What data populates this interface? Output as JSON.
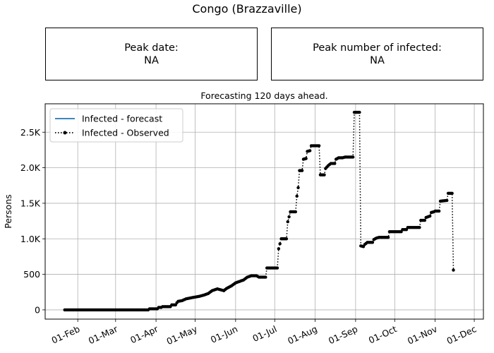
{
  "title": "Congo (Brazzaville)",
  "boxes": {
    "peak_date": {
      "label": "Peak date:",
      "value": "NA"
    },
    "peak_infected": {
      "label": "Peak number of infected:",
      "value": "NA"
    }
  },
  "chart_data": {
    "type": "line",
    "title": "Forecasting 120 days ahead.",
    "ylabel": "Persons",
    "xlabel": "",
    "x_range": [
      "2020-01-07",
      "2020-12-08"
    ],
    "ylim": [
      -130,
      2900
    ],
    "grid": true,
    "legend_position": "top-left",
    "x_ticks": [
      {
        "date": "2020-02-01",
        "label": "01-Feb"
      },
      {
        "date": "2020-03-01",
        "label": "01-Mar"
      },
      {
        "date": "2020-04-01",
        "label": "01-Apr"
      },
      {
        "date": "2020-05-01",
        "label": "01-May"
      },
      {
        "date": "2020-06-01",
        "label": "01-Jun"
      },
      {
        "date": "2020-07-01",
        "label": "01-Jul"
      },
      {
        "date": "2020-08-01",
        "label": "01-Aug"
      },
      {
        "date": "2020-09-01",
        "label": "01-Sep"
      },
      {
        "date": "2020-10-01",
        "label": "01-Oct"
      },
      {
        "date": "2020-11-01",
        "label": "01-Nov"
      },
      {
        "date": "2020-12-01",
        "label": "01-Dec"
      }
    ],
    "y_ticks": [
      {
        "value": 0,
        "label": "0"
      },
      {
        "value": 500,
        "label": "500"
      },
      {
        "value": 1000,
        "label": "1.0K"
      },
      {
        "value": 1500,
        "label": "1.5K"
      },
      {
        "value": 2000,
        "label": "2.0K"
      },
      {
        "value": 2500,
        "label": "2.5K"
      }
    ],
    "series": [
      {
        "name": "Infected - forecast",
        "color": "#1f77b4",
        "style": "solid",
        "points": []
      },
      {
        "name": "Infected - Observed",
        "color": "#000000",
        "style": "dotted-marker",
        "points": [
          [
            "2020-01-22",
            0
          ],
          [
            "2020-03-26",
            0
          ],
          [
            "2020-03-27",
            15
          ],
          [
            "2020-04-02",
            15
          ],
          [
            "2020-04-03",
            35
          ],
          [
            "2020-04-05",
            35
          ],
          [
            "2020-04-06",
            45
          ],
          [
            "2020-04-12",
            45
          ],
          [
            "2020-04-13",
            70
          ],
          [
            "2020-04-16",
            70
          ],
          [
            "2020-04-17",
            100
          ],
          [
            "2020-04-18",
            120
          ],
          [
            "2020-04-21",
            130
          ],
          [
            "2020-04-24",
            155
          ],
          [
            "2020-04-28",
            170
          ],
          [
            "2020-05-04",
            190
          ],
          [
            "2020-05-08",
            210
          ],
          [
            "2020-05-11",
            230
          ],
          [
            "2020-05-14",
            270
          ],
          [
            "2020-05-18",
            295
          ],
          [
            "2020-05-21",
            280
          ],
          [
            "2020-05-23",
            270
          ],
          [
            "2020-05-25",
            300
          ],
          [
            "2020-05-29",
            340
          ],
          [
            "2020-06-01",
            380
          ],
          [
            "2020-06-04",
            400
          ],
          [
            "2020-06-07",
            420
          ],
          [
            "2020-06-10",
            460
          ],
          [
            "2020-06-13",
            480
          ],
          [
            "2020-06-17",
            480
          ],
          [
            "2020-06-19",
            460
          ],
          [
            "2020-06-24",
            460
          ],
          [
            "2020-06-25",
            590
          ],
          [
            "2020-07-03",
            590
          ],
          [
            "2020-07-04",
            860
          ],
          [
            "2020-07-06",
            1000
          ],
          [
            "2020-07-10",
            1000
          ],
          [
            "2020-07-11",
            1240
          ],
          [
            "2020-07-13",
            1380
          ],
          [
            "2020-07-17",
            1380
          ],
          [
            "2020-07-18",
            1600
          ],
          [
            "2020-07-19",
            1720
          ],
          [
            "2020-07-20",
            1960
          ],
          [
            "2020-07-22",
            1960
          ],
          [
            "2020-07-23",
            2120
          ],
          [
            "2020-07-25",
            2130
          ],
          [
            "2020-07-26",
            2230
          ],
          [
            "2020-07-28",
            2240
          ],
          [
            "2020-07-29",
            2310
          ],
          [
            "2020-08-04",
            2310
          ],
          [
            "2020-08-05",
            1900
          ],
          [
            "2020-08-08",
            1900
          ],
          [
            "2020-08-09",
            1990
          ],
          [
            "2020-08-11",
            2030
          ],
          [
            "2020-08-13",
            2060
          ],
          [
            "2020-08-16",
            2060
          ],
          [
            "2020-08-17",
            2120
          ],
          [
            "2020-08-19",
            2140
          ],
          [
            "2020-08-22",
            2140
          ],
          [
            "2020-08-24",
            2150
          ],
          [
            "2020-08-30",
            2150
          ],
          [
            "2020-08-31",
            2780
          ],
          [
            "2020-09-04",
            2780
          ],
          [
            "2020-09-05",
            900
          ],
          [
            "2020-09-07",
            890
          ],
          [
            "2020-09-08",
            920
          ],
          [
            "2020-09-10",
            950
          ],
          [
            "2020-09-14",
            950
          ],
          [
            "2020-09-15",
            990
          ],
          [
            "2020-09-17",
            1010
          ],
          [
            "2020-09-19",
            1020
          ],
          [
            "2020-09-26",
            1020
          ],
          [
            "2020-09-27",
            1100
          ],
          [
            "2020-10-06",
            1100
          ],
          [
            "2020-10-07",
            1130
          ],
          [
            "2020-10-10",
            1130
          ],
          [
            "2020-10-11",
            1160
          ],
          [
            "2020-10-20",
            1160
          ],
          [
            "2020-10-21",
            1260
          ],
          [
            "2020-10-24",
            1260
          ],
          [
            "2020-10-25",
            1300
          ],
          [
            "2020-10-28",
            1320
          ],
          [
            "2020-10-29",
            1370
          ],
          [
            "2020-10-31",
            1380
          ],
          [
            "2020-11-01",
            1390
          ],
          [
            "2020-11-04",
            1390
          ],
          [
            "2020-11-05",
            1530
          ],
          [
            "2020-11-10",
            1540
          ],
          [
            "2020-11-11",
            1640
          ],
          [
            "2020-11-14",
            1640
          ],
          [
            "2020-11-15",
            560
          ]
        ]
      }
    ]
  }
}
